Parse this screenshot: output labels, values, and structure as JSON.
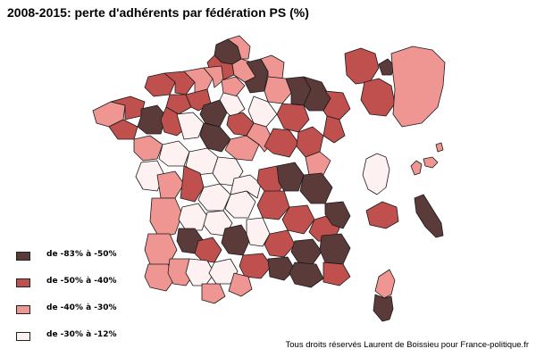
{
  "title": "2008-2015: perte d'adhérents par fédération PS (%)",
  "colors": {
    "very_dark": "#5b3a3a",
    "dark": "#c0504d",
    "medium": "#ef9693",
    "light": "#fdf1f1",
    "border": "#1a1a1a"
  },
  "legend": [
    {
      "label": "de -83% à -50%",
      "color": "#5b3a3a"
    },
    {
      "label": "de -50% à -40%",
      "color": "#c0504d"
    },
    {
      "label": "de -40% à -30%",
      "color": "#ef9693"
    },
    {
      "label": "de -30% à -12%",
      "color": "#fdf1f1"
    }
  ],
  "credit": "Tous droits réservés Laurent de Boissieu pour France-politique.fr"
}
